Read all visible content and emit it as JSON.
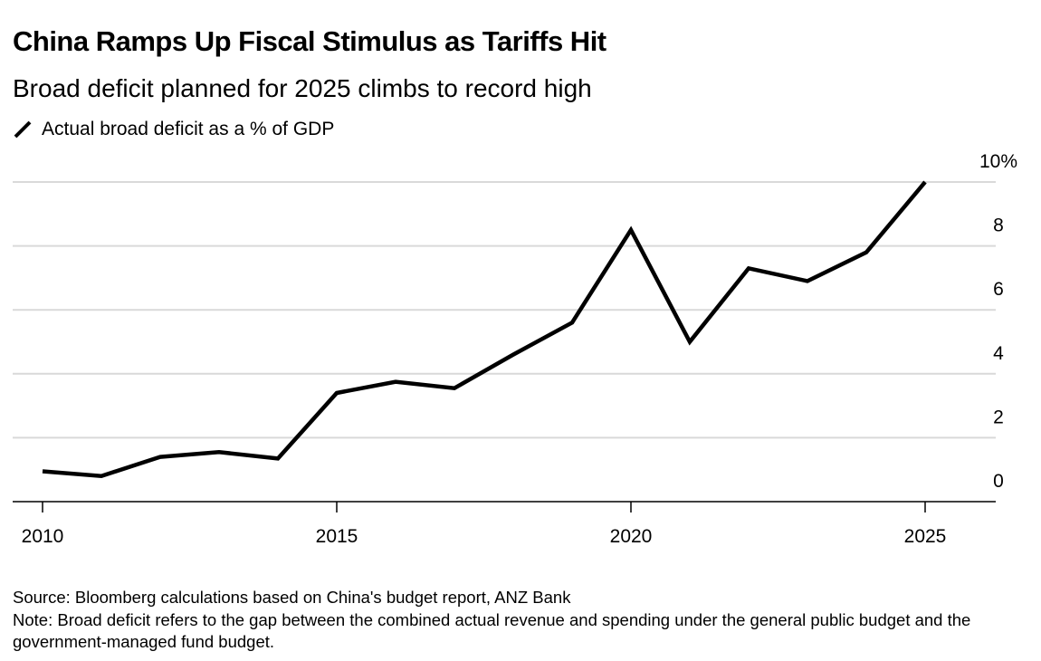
{
  "chart_data": {
    "type": "line",
    "title": "China Ramps Up Fiscal Stimulus as Tariffs Hit",
    "subtitle": "Broad deficit planned for 2025 climbs to record high",
    "legend": [
      "Actual broad deficit as a % of GDP"
    ],
    "legend_placement": "top-left",
    "x": [
      2010,
      2011,
      2012,
      2013,
      2014,
      2015,
      2016,
      2017,
      2018,
      2019,
      2020,
      2021,
      2022,
      2023,
      2024,
      2025
    ],
    "series": [
      {
        "name": "Actual broad deficit as a % of GDP",
        "color": "#000000",
        "values": [
          0.95,
          0.8,
          1.4,
          1.55,
          1.35,
          3.4,
          3.75,
          3.55,
          4.6,
          5.6,
          8.5,
          5.0,
          7.3,
          6.9,
          7.8,
          10.0
        ]
      }
    ],
    "xticks": [
      "2010",
      "2015",
      "2020",
      "2025"
    ],
    "yticks": [
      "0",
      "2",
      "4",
      "6",
      "8",
      "10%"
    ],
    "ylim": [
      0,
      10
    ],
    "xlim": [
      2009.5,
      2027.2
    ],
    "grid": true,
    "xlabel": "",
    "ylabel": ""
  },
  "source": "Source: Bloomberg calculations based on China's budget report, ANZ Bank",
  "note": "Note: Broad deficit refers to the gap between the combined actual revenue and spending under the general public budget and the government-managed fund budget."
}
